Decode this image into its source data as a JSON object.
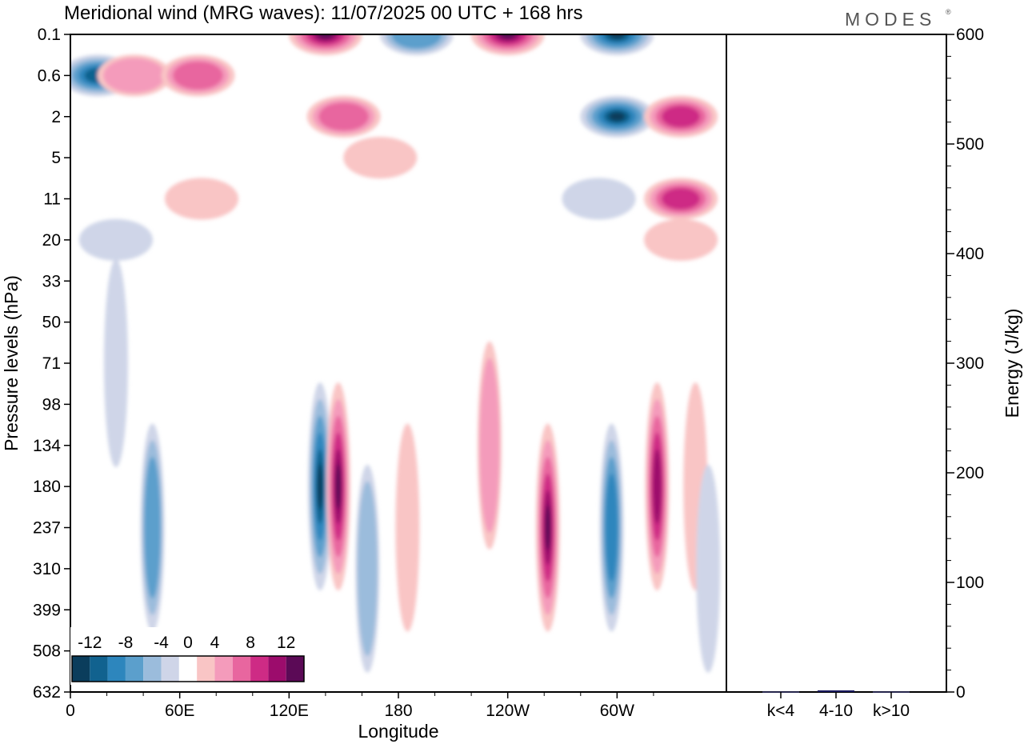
{
  "title": "Meridional wind (MRG waves):  11/07/2025  00 UTC  + 168 hrs",
  "logo": {
    "text": "MODES",
    "mark": "®"
  },
  "chart_data": [
    {
      "type": "heatmap",
      "variable": "Meridional wind (MRG waves)",
      "xlabel": "Longitude",
      "ylabel": "Pressure levels (hPa)",
      "x_ticks": [
        "0",
        "60E",
        "120E",
        "180",
        "120W",
        "60W"
      ],
      "y_levels": [
        "0.1",
        "0.6",
        "2",
        "5",
        "11",
        "20",
        "33",
        "50",
        "71",
        "98",
        "134",
        "180",
        "237",
        "310",
        "399",
        "508",
        "632"
      ],
      "colorbar": {
        "tick_labels": [
          "-12",
          "-8",
          "-4",
          "0",
          "4",
          "8",
          "12"
        ],
        "bins": [
          -14,
          -12,
          -10,
          -8,
          -6,
          -4,
          -2,
          2,
          4,
          6,
          8,
          10,
          12,
          14
        ],
        "colors": [
          "#0b3d5c",
          "#11628f",
          "#2d86bd",
          "#5b9fcc",
          "#9bbcdc",
          "#cfd5e8",
          "#ffffff",
          "#f9c5c5",
          "#f49bbb",
          "#e8669f",
          "#ce2b85",
          "#9c0c6c",
          "#5b0a56"
        ]
      },
      "features": [
        {
          "lon": 15,
          "lev": "0.6",
          "value": -11
        },
        {
          "lon": 35,
          "lev": "0.6",
          "value": 6
        },
        {
          "lon": 70,
          "lev": "0.6",
          "value": 8
        },
        {
          "lon": 72,
          "lev": "11",
          "value": 3
        },
        {
          "lon": 25,
          "lev": "20",
          "value": -4
        },
        {
          "lon": 25,
          "lev": "71",
          "value": -3
        },
        {
          "lon": 140,
          "lev": "0.1",
          "value": 14
        },
        {
          "lon": 150,
          "lev": "2",
          "value": 8
        },
        {
          "lon": 170,
          "lev": "5",
          "value": 4
        },
        {
          "lon": 190,
          "lev": "0.1",
          "value": -8
        },
        {
          "lon": 240,
          "lev": "0.1",
          "value": 14
        },
        {
          "lon": 300,
          "lev": "0.1",
          "value": -14
        },
        {
          "lon": 300,
          "lev": "2",
          "value": -14
        },
        {
          "lon": 335,
          "lev": "2",
          "value": 10
        },
        {
          "lon": 335,
          "lev": "11",
          "value": 9
        },
        {
          "lon": 290,
          "lev": "11",
          "value": -4
        },
        {
          "lon": 335,
          "lev": "20",
          "value": 3
        },
        {
          "lon": 45,
          "lev": "237",
          "value": -8
        },
        {
          "lon": 137,
          "lev": "180",
          "value": -14
        },
        {
          "lon": 147,
          "lev": "180",
          "value": 14
        },
        {
          "lon": 163,
          "lev": "310",
          "value": -5
        },
        {
          "lon": 185,
          "lev": "237",
          "value": 3
        },
        {
          "lon": 230,
          "lev": "134",
          "value": 5
        },
        {
          "lon": 262,
          "lev": "237",
          "value": 13
        },
        {
          "lon": 297,
          "lev": "237",
          "value": -9
        },
        {
          "lon": 322,
          "lev": "180",
          "value": 12
        },
        {
          "lon": 343,
          "lev": "180",
          "value": 4
        },
        {
          "lon": 350,
          "lev": "310",
          "value": -3
        }
      ]
    },
    {
      "type": "bar",
      "ylabel": "Energy (J/kg)",
      "categories": [
        "k<4",
        "4-10",
        "k>10"
      ],
      "values": [
        0.5,
        1.5,
        0.5
      ],
      "ylim": [
        0,
        600
      ],
      "y_ticks": [
        0,
        100,
        200,
        300,
        400,
        500,
        600
      ]
    }
  ]
}
